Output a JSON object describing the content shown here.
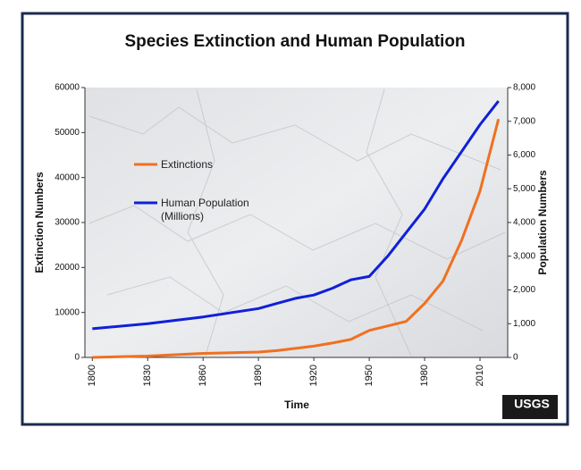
{
  "chart_data": {
    "type": "line",
    "title": "Species Extinction and Human Population",
    "x_label": "Time",
    "y_label": "Extinction Numbers",
    "y2_label": "Population Numbers",
    "x": [
      1800,
      1830,
      1860,
      1890,
      1900,
      1910,
      1920,
      1930,
      1940,
      1950,
      1960,
      1970,
      1980,
      1990,
      2000,
      2010,
      2020
    ],
    "series": [
      {
        "name": "Extinctions",
        "color": "#f07020",
        "values": [
          0,
          300,
          900,
          1200,
          1500,
          2000,
          2500,
          3200,
          4000,
          6000,
          7000,
          8000,
          12000,
          17000,
          26000,
          37000,
          53000
        ]
      },
      {
        "name": "Human Population (Millions)",
        "color": "#1020d8",
        "axis": "y2",
        "values": [
          850,
          1000,
          1200,
          1450,
          1600,
          1750,
          1850,
          2050,
          2300,
          2400,
          3000,
          3700,
          4400,
          5300,
          6100,
          6900,
          7600
        ]
      }
    ],
    "xlim": [
      1796,
      2025
    ],
    "xticks": [
      1800,
      1830,
      1860,
      1890,
      1920,
      1950,
      1980,
      2010
    ],
    "ylim": [
      0,
      60000
    ],
    "yticks": [
      0,
      10000,
      20000,
      30000,
      40000,
      50000,
      60000
    ],
    "y2lim": [
      0,
      8000
    ],
    "y2ticks": [
      0,
      {
        "value": 1000,
        "label": "1,000"
      },
      {
        "value": 2000,
        "label": "2,000"
      },
      {
        "value": 3000,
        "label": "3,000"
      },
      {
        "value": 4000,
        "label": "4,000"
      },
      {
        "value": 5000,
        "label": "5,000"
      },
      {
        "value": 6000,
        "label": "6,000"
      },
      {
        "value": 7000,
        "label": "7,000"
      },
      {
        "value": 8000,
        "label": "8,000"
      }
    ],
    "logo": "USGS"
  }
}
